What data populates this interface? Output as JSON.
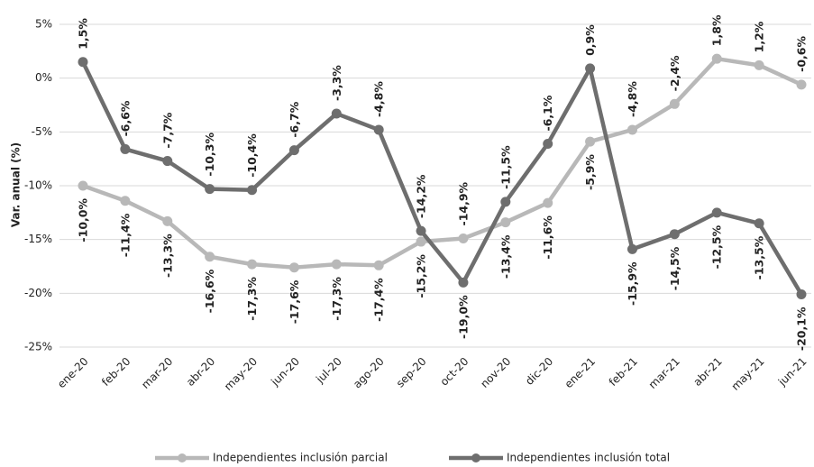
{
  "chart_data": {
    "type": "line",
    "y_axis_label": "Var. anual (%)",
    "categories": [
      "ene-20",
      "feb-20",
      "mar-20",
      "abr-20",
      "may-20",
      "jun-20",
      "jul-20",
      "ago-20",
      "sep-20",
      "oct-20",
      "nov-20",
      "dic-20",
      "ene-21",
      "feb-21",
      "mar-21",
      "abr-21",
      "may-21",
      "jun-21"
    ],
    "series": [
      {
        "name": "Independientes inclusión parcial",
        "color": "#b8b8b8",
        "values": [
          -10.0,
          -11.4,
          -13.3,
          -16.6,
          -17.3,
          -17.6,
          -17.3,
          -17.4,
          -15.2,
          -14.9,
          -13.4,
          -11.6,
          -5.9,
          -4.8,
          -2.4,
          1.8,
          1.2,
          -0.6
        ],
        "value_labels": [
          "-10,0%",
          "-11,4%",
          "-13,3%",
          "-16,6%",
          "-17,3%",
          "-17,6%",
          "-17,3%",
          "-17,4%",
          "-15,2%",
          "-14,9%",
          "-13,4%",
          "-11,6%",
          "-5,9%",
          "-4,8%",
          "-2,4%",
          "1,8%",
          "1,2%",
          "-0,6%"
        ]
      },
      {
        "name": "Independientes inclusión total",
        "color": "#6e6e6e",
        "values": [
          1.5,
          -6.6,
          -7.7,
          -10.3,
          -10.4,
          -6.7,
          -3.3,
          -4.8,
          -14.2,
          -19.0,
          -11.5,
          -6.1,
          0.9,
          -15.9,
          -14.5,
          -12.5,
          -13.5,
          -20.1
        ],
        "value_labels": [
          "1,5%",
          "-6,6%",
          "-7,7%",
          "-10,3%",
          "-10,4%",
          "-6,7%",
          "-3,3%",
          "-4,8%",
          "-14,2%",
          "-19,0%",
          "-11,5%",
          "-6,1%",
          "0,9%",
          "-15,9%",
          "-14,5%",
          "-12,5%",
          "-13,5%",
          "-20,1%"
        ]
      }
    ],
    "ylim": [
      -25,
      5
    ],
    "yticks": [
      {
        "value": -25,
        "label": "-25%"
      },
      {
        "value": -20,
        "label": "-20%"
      },
      {
        "value": -15,
        "label": "-15%"
      },
      {
        "value": -10,
        "label": "-10%"
      },
      {
        "value": -5,
        "label": "-5%"
      },
      {
        "value": 0,
        "label": "0%"
      },
      {
        "value": 5,
        "label": "5%"
      }
    ],
    "grid": true,
    "legend": "bottom"
  }
}
